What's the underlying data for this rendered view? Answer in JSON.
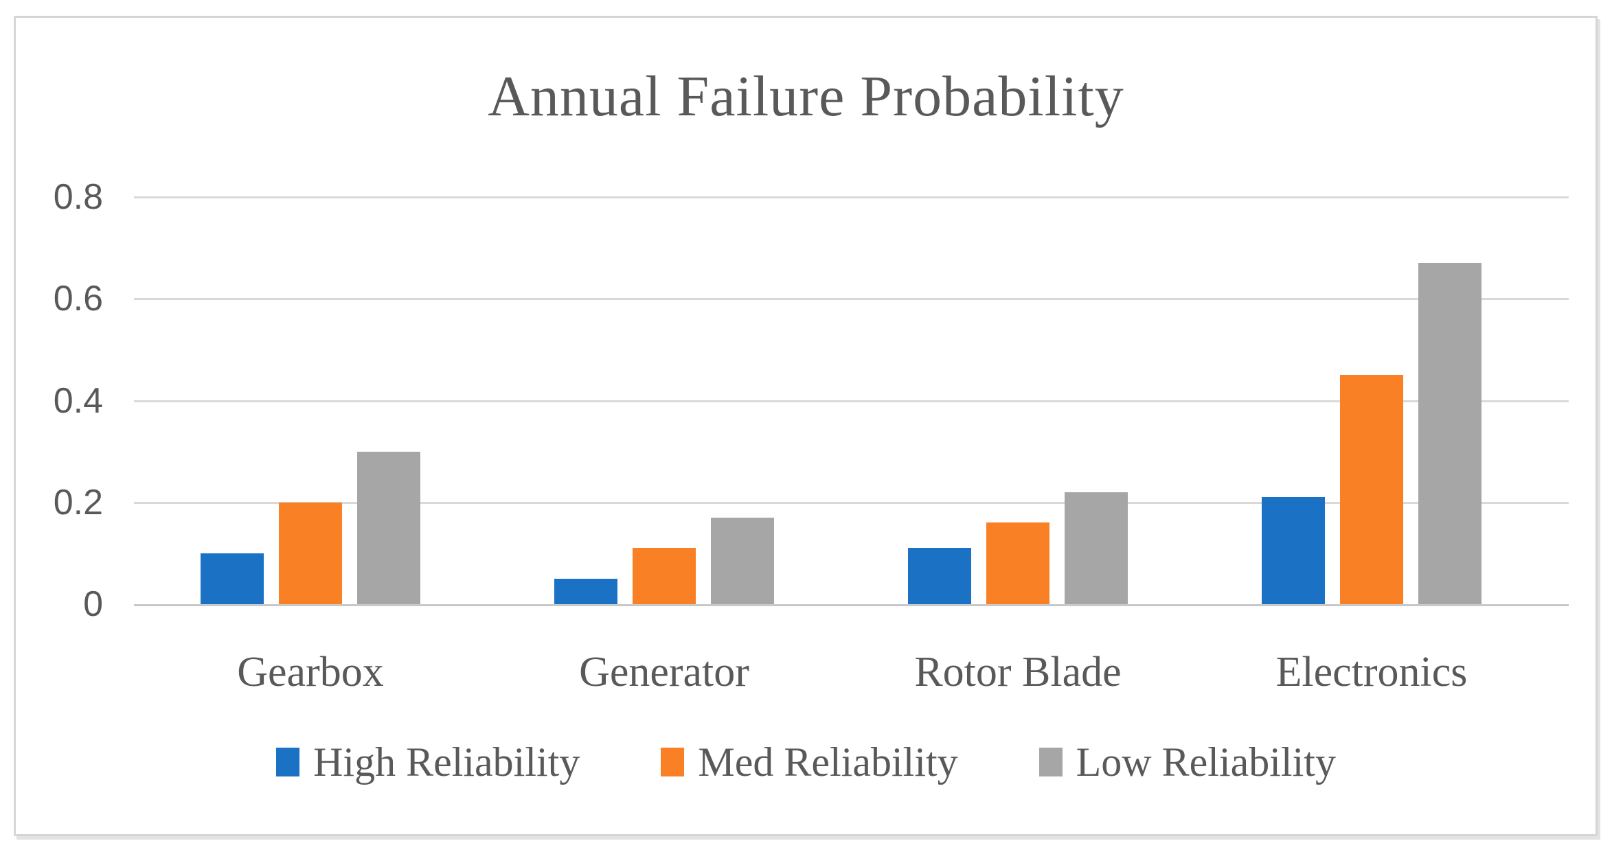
{
  "chart_data": {
    "type": "bar",
    "title": "Annual Failure Probability",
    "categories": [
      "Gearbox",
      "Generator",
      "Rotor Blade",
      "Electronics"
    ],
    "series": [
      {
        "name": "High Reliability",
        "color": "#1b72c4",
        "values": [
          0.1,
          0.05,
          0.11,
          0.21
        ]
      },
      {
        "name": "Med Reliability",
        "color": "#fa8025",
        "values": [
          0.2,
          0.11,
          0.16,
          0.45
        ]
      },
      {
        "name": "Low Reliability",
        "color": "#a6a6a6",
        "values": [
          0.3,
          0.17,
          0.22,
          0.67
        ]
      }
    ],
    "xlabel": "",
    "ylabel": "",
    "ylim": [
      0,
      0.8
    ],
    "yticks": [
      0,
      0.2,
      0.4,
      0.6,
      0.8
    ],
    "ytick_labels": [
      "0",
      "0.2",
      "0.4",
      "0.6",
      "0.8"
    ],
    "grid": true,
    "legend_position": "bottom"
  },
  "colors": {
    "text": "#595959",
    "gridline": "#d9d9d9",
    "axis_line": "#c9c9c9",
    "frame_border": "#d6d6d6",
    "background": "#ffffff"
  }
}
